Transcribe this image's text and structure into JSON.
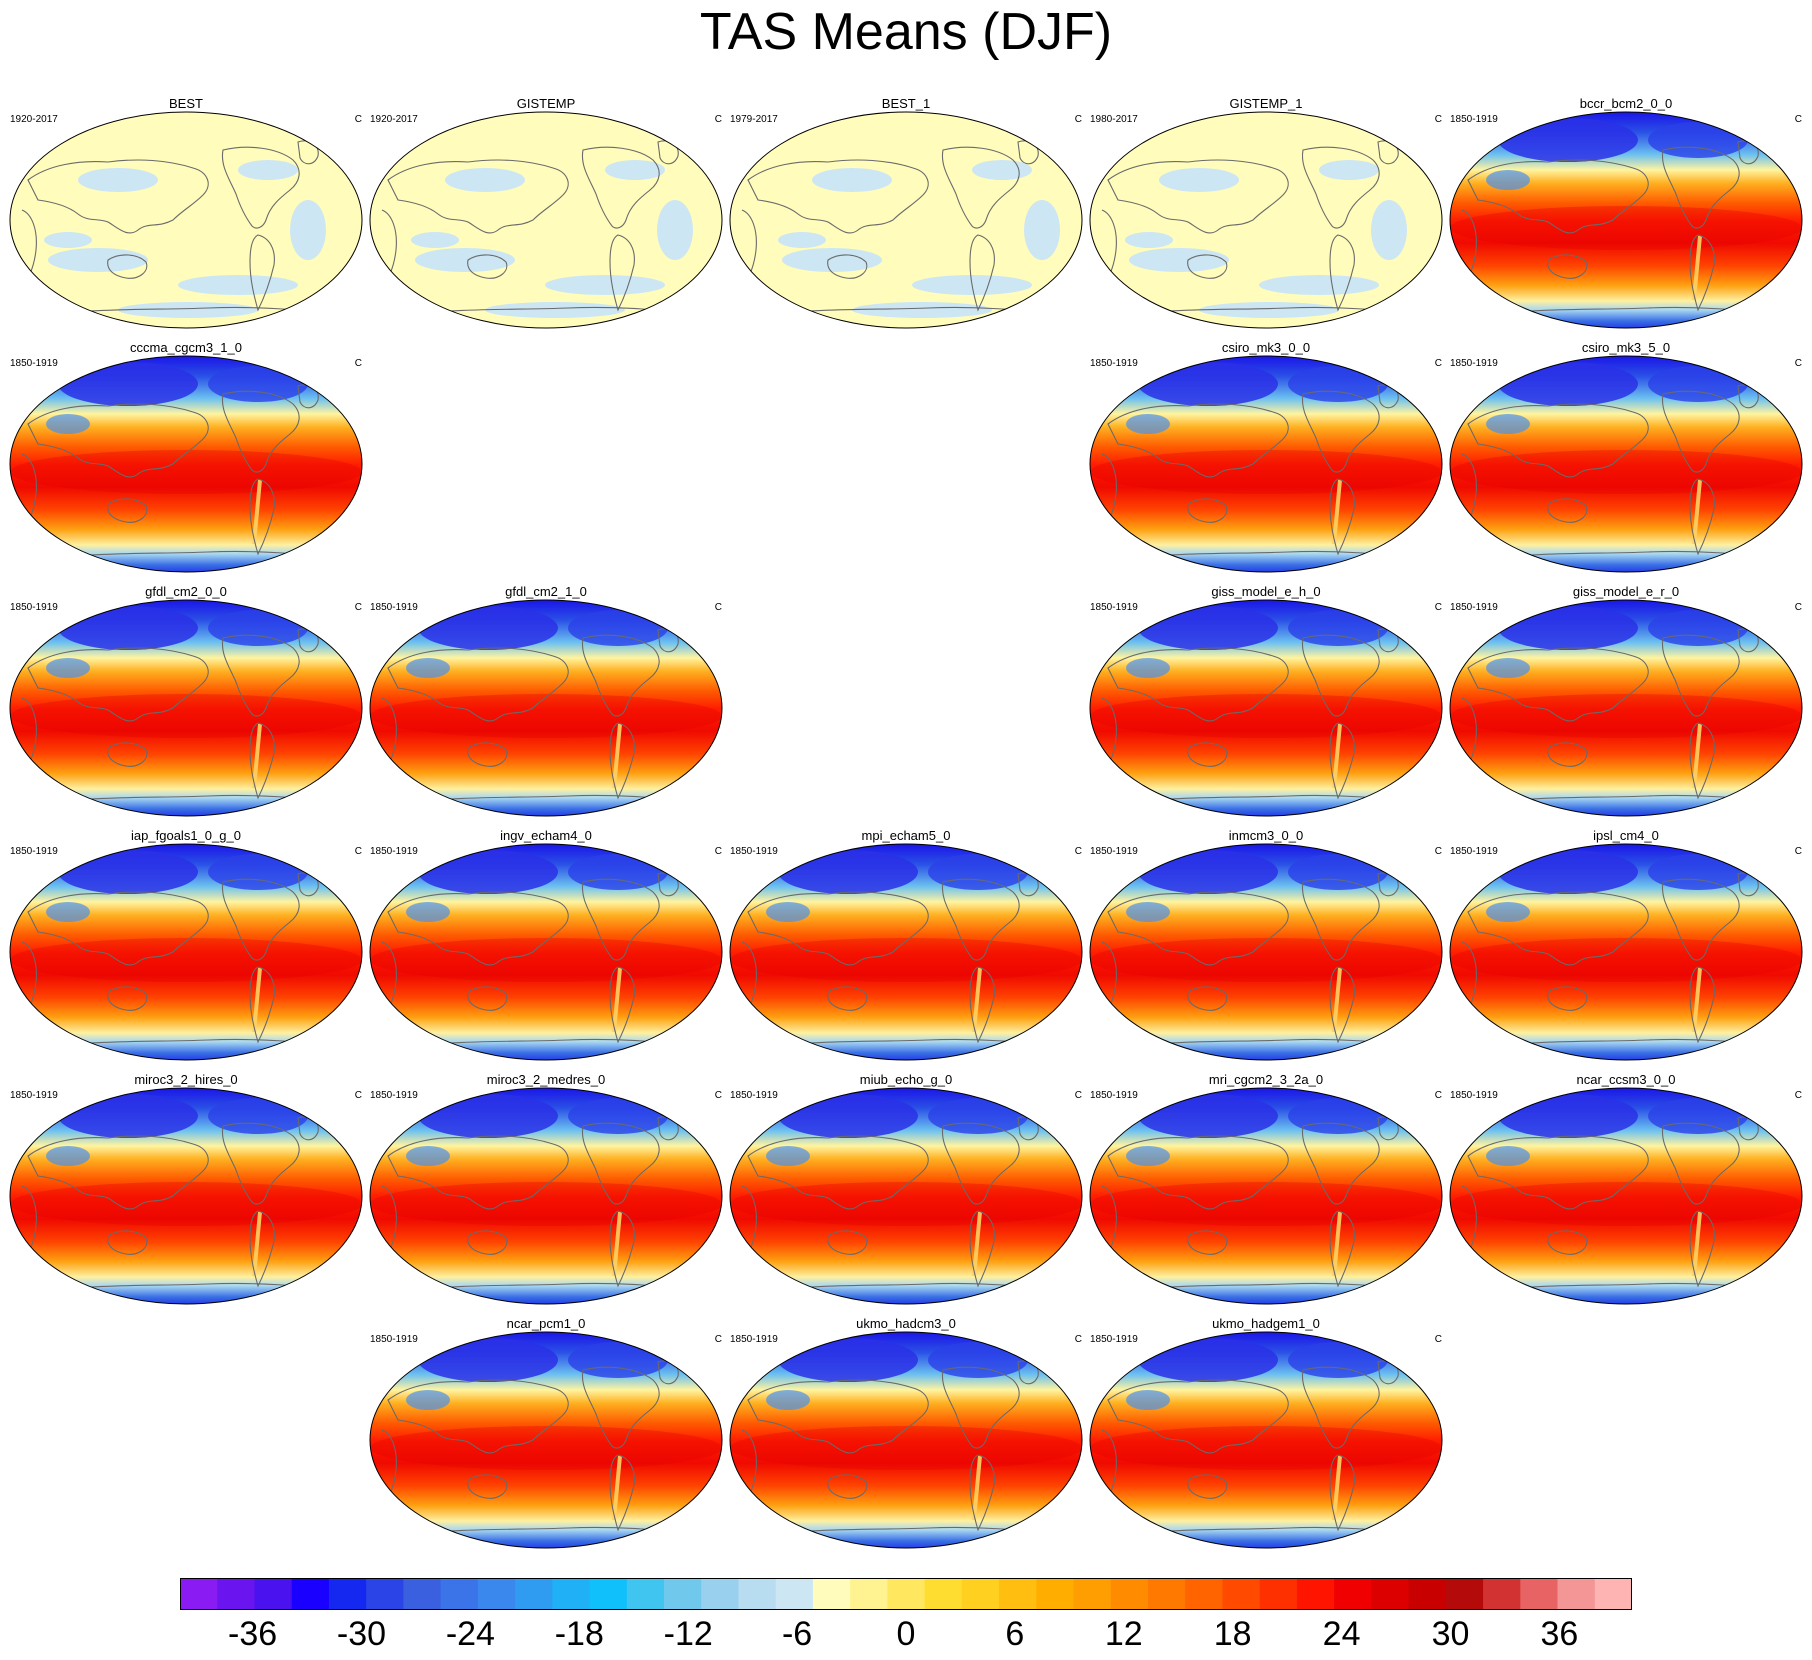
{
  "title": "TAS Means (DJF)",
  "unit": "C",
  "panels": [
    {
      "row": 0,
      "col": 0,
      "name": "BEST",
      "years": "1920-2017",
      "type": "obs"
    },
    {
      "row": 0,
      "col": 1,
      "name": "GISTEMP",
      "years": "1920-2017",
      "type": "obs"
    },
    {
      "row": 0,
      "col": 2,
      "name": "BEST_1",
      "years": "1979-2017",
      "type": "obs"
    },
    {
      "row": 0,
      "col": 3,
      "name": "GISTEMP_1",
      "years": "1980-2017",
      "type": "obs"
    },
    {
      "row": 0,
      "col": 4,
      "name": "bccr_bcm2_0_0",
      "years": "1850-1919",
      "type": "model"
    },
    {
      "row": 1,
      "col": 0,
      "name": "cccma_cgcm3_1_0",
      "years": "1850-1919",
      "type": "model"
    },
    {
      "row": 1,
      "col": 3,
      "name": "csiro_mk3_0_0",
      "years": "1850-1919",
      "type": "model"
    },
    {
      "row": 1,
      "col": 4,
      "name": "csiro_mk3_5_0",
      "years": "1850-1919",
      "type": "model"
    },
    {
      "row": 2,
      "col": 0,
      "name": "gfdl_cm2_0_0",
      "years": "1850-1919",
      "type": "model"
    },
    {
      "row": 2,
      "col": 1,
      "name": "gfdl_cm2_1_0",
      "years": "1850-1919",
      "type": "model"
    },
    {
      "row": 2,
      "col": 3,
      "name": "giss_model_e_h_0",
      "years": "1850-1919",
      "type": "model"
    },
    {
      "row": 2,
      "col": 4,
      "name": "giss_model_e_r_0",
      "years": "1850-1919",
      "type": "model"
    },
    {
      "row": 3,
      "col": 0,
      "name": "iap_fgoals1_0_g_0",
      "years": "1850-1919",
      "type": "model"
    },
    {
      "row": 3,
      "col": 1,
      "name": "ingv_echam4_0",
      "years": "1850-1919",
      "type": "model"
    },
    {
      "row": 3,
      "col": 2,
      "name": "mpi_echam5_0",
      "years": "1850-1919",
      "type": "model"
    },
    {
      "row": 3,
      "col": 3,
      "name": "inmcm3_0_0",
      "years": "1850-1919",
      "type": "model"
    },
    {
      "row": 3,
      "col": 4,
      "name": "ipsl_cm4_0",
      "years": "1850-1919",
      "type": "model"
    },
    {
      "row": 4,
      "col": 0,
      "name": "miroc3_2_hires_0",
      "years": "1850-1919",
      "type": "model"
    },
    {
      "row": 4,
      "col": 1,
      "name": "miroc3_2_medres_0",
      "years": "1850-1919",
      "type": "model"
    },
    {
      "row": 4,
      "col": 2,
      "name": "miub_echo_g_0",
      "years": "1850-1919",
      "type": "model"
    },
    {
      "row": 4,
      "col": 3,
      "name": "mri_cgcm2_3_2a_0",
      "years": "1850-1919",
      "type": "model"
    },
    {
      "row": 4,
      "col": 4,
      "name": "ncar_ccsm3_0_0",
      "years": "1850-1919",
      "type": "model"
    },
    {
      "row": 5,
      "col": 1,
      "name": "ncar_pcm1_0",
      "years": "1850-1919",
      "type": "model"
    },
    {
      "row": 5,
      "col": 2,
      "name": "ukmo_hadcm3_0",
      "years": "1850-1919",
      "type": "model"
    },
    {
      "row": 5,
      "col": 3,
      "name": "ukmo_hadgem1_0",
      "years": "1850-1919",
      "type": "model"
    }
  ],
  "colorbar": {
    "colors": [
      "#8a1bf2",
      "#6a15f0",
      "#4a12ee",
      "#1a00ff",
      "#1428f0",
      "#2a44e8",
      "#3a60e0",
      "#3a74e8",
      "#3a88ee",
      "#2f9cf2",
      "#20b0f6",
      "#10c0fa",
      "#40c4f0",
      "#70c8ec",
      "#98d0ee",
      "#b8dcf0",
      "#cce6f4",
      "#fffcbc",
      "#fff290",
      "#ffe860",
      "#ffdc30",
      "#ffd020",
      "#ffbe10",
      "#ffae00",
      "#ff9e00",
      "#ff8c00",
      "#ff7800",
      "#ff6400",
      "#ff4a00",
      "#ff3000",
      "#ff1400",
      "#f00000",
      "#dc0000",
      "#c80000",
      "#b40a0a",
      "#d23232",
      "#e86464",
      "#f49696",
      "#ffb4b4"
    ],
    "tick_labels": [
      "-36",
      "-30",
      "-24",
      "-18",
      "-12",
      "-6",
      "0",
      "6",
      "12",
      "18",
      "24",
      "30",
      "36"
    ],
    "tick_values": [
      -36,
      -30,
      -24,
      -18,
      -12,
      -6,
      0,
      6,
      12,
      18,
      24,
      30,
      36
    ],
    "min": -40,
    "max": 40
  }
}
